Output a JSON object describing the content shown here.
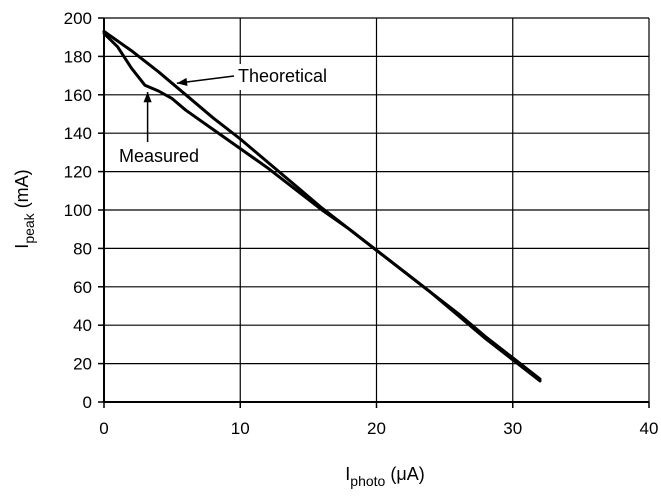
{
  "chart_data": {
    "type": "line",
    "title": "",
    "xlabel": {
      "main": "I",
      "sub": "photo",
      "unit": " (μA)"
    },
    "ylabel": {
      "main": "I",
      "sub": "peak",
      "unit": " (mA)"
    },
    "xlim": [
      0,
      40
    ],
    "ylim": [
      0,
      200
    ],
    "xticks": [
      0,
      10,
      20,
      30,
      40
    ],
    "yticks": [
      0,
      20,
      40,
      60,
      80,
      100,
      120,
      140,
      160,
      180,
      200
    ],
    "grid": true,
    "colors": {
      "line": "#000000",
      "grid": "#000000",
      "axes": "#000000",
      "background": "#ffffff"
    },
    "series": [
      {
        "name": "Theoretical",
        "x": [
          0,
          2,
          4,
          6,
          8,
          10,
          12,
          14,
          16,
          18,
          20,
          22,
          24,
          26,
          28,
          30,
          32
        ],
        "y": [
          193,
          183,
          172,
          160,
          148,
          137,
          125,
          113,
          101,
          90,
          79,
          68,
          57,
          45,
          33,
          22,
          11
        ]
      },
      {
        "name": "Measured",
        "x": [
          0,
          1,
          2,
          3,
          4,
          5,
          6,
          8,
          10,
          12,
          14,
          16,
          18,
          20,
          22,
          24,
          26,
          28,
          30,
          32
        ],
        "y": [
          192,
          185,
          174,
          165,
          162,
          158,
          152,
          142,
          132,
          122,
          111,
          100,
          90,
          79,
          68,
          57,
          46,
          34,
          23,
          12
        ]
      }
    ],
    "annotations": [
      {
        "label": "Theoretical",
        "series": "Theoretical",
        "point_x": 5.2,
        "point_y": 166
      },
      {
        "label": "Measured",
        "series": "Measured",
        "point_x": 3.2,
        "point_y": 163
      }
    ]
  }
}
